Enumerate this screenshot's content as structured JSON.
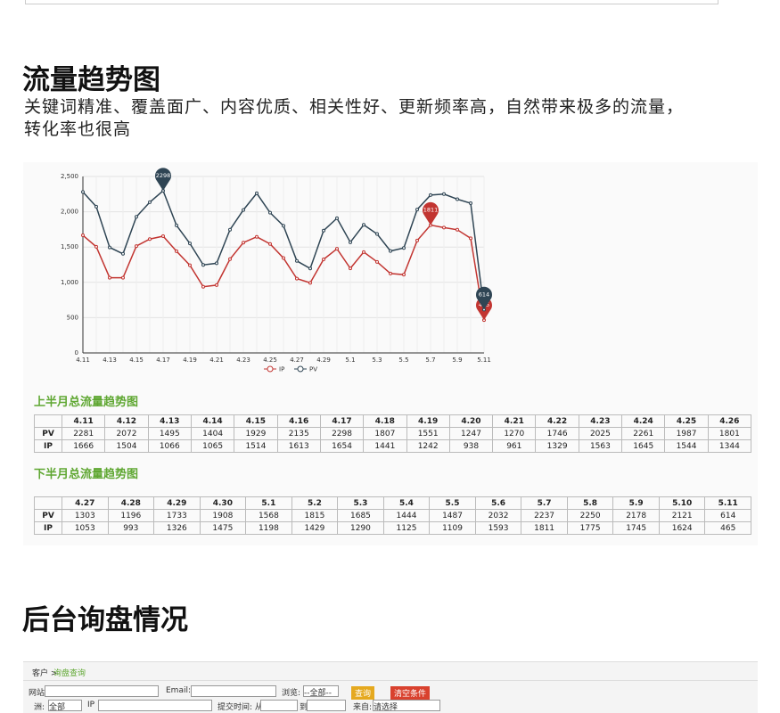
{
  "header": {
    "title": "流量趋势图",
    "description": "关键词精准、覆盖面广、内容优质、相关性好、更新频率高，自然带来极多的流量，转化率也很高"
  },
  "chart_data": {
    "type": "line",
    "categories": [
      "4.11",
      null,
      "4.13",
      null,
      "4.15",
      null,
      "4.17",
      null,
      "4.19",
      null,
      "4.21",
      null,
      "4.23",
      null,
      "4.25",
      null,
      "4.27",
      null,
      "4.29",
      null,
      "5.1",
      null,
      "5.3",
      null,
      "5.5",
      null,
      "5.7",
      null,
      "5.9",
      null,
      "5.11"
    ],
    "series": [
      {
        "name": "IP",
        "color": "#c23531",
        "values": [
          1666,
          1504,
          1066,
          1065,
          1514,
          1613,
          1654,
          1441,
          1242,
          938,
          961,
          1329,
          1563,
          1645,
          1544,
          1344,
          1053,
          993,
          1326,
          1475,
          1198,
          1429,
          1290,
          1125,
          1109,
          1593,
          1811,
          1775,
          1745,
          1624,
          465
        ]
      },
      {
        "name": "PV",
        "color": "#2f4554",
        "values": [
          2281,
          2072,
          1495,
          1404,
          1929,
          2135,
          2298,
          1807,
          1551,
          1247,
          1270,
          1746,
          2025,
          2261,
          1987,
          1801,
          1303,
          1196,
          1733,
          1908,
          1568,
          1815,
          1685,
          1444,
          1487,
          2032,
          2237,
          2250,
          2178,
          2121,
          614
        ]
      }
    ],
    "ylim": [
      0,
      2500
    ],
    "yticks": [
      0,
      500,
      {
        "value": 1000,
        "label": "1,000"
      },
      {
        "value": 1500,
        "label": "1,500"
      },
      {
        "value": 2000,
        "label": "2,000"
      },
      {
        "value": 2500,
        "label": "2,500"
      }
    ],
    "grid": true,
    "legend": "bottom",
    "markpoints": [
      "max",
      "min"
    ]
  },
  "tables": [
    {
      "title": "上半月总流量趋势图",
      "columns": [
        "4.11",
        "4.12",
        "4.13",
        "4.14",
        "4.15",
        "4.16",
        "4.17",
        "4.18",
        "4.19",
        "4.20",
        "4.21",
        "4.22",
        "4.23",
        "4.24",
        "4.25",
        "4.26"
      ]
    },
    {
      "title": "下半月总流量趋势图",
      "columns": [
        "4.27",
        "4.28",
        "4.29",
        "4.30",
        "5.1",
        "5.2",
        "5.3",
        "5.4",
        "5.5",
        "5.6",
        "5.7",
        "5.8",
        "5.9",
        "5.10",
        "5.11"
      ]
    }
  ],
  "section2": {
    "title": "后台询盘情况"
  },
  "form": {
    "breadcrumb": "客户 >",
    "breadcrumb_link": "询盘查询",
    "site": "网站",
    "email": "Email:",
    "browse": "浏览:",
    "browse_option": "--全部--",
    "search": "查询",
    "clear": "清空条件",
    "continent": "洲:",
    "continent_option": "全部",
    "ip": "IP",
    "time_from": "提交时间: 从",
    "time_to": "到",
    "from": "来自:",
    "from_option": "请选择"
  }
}
